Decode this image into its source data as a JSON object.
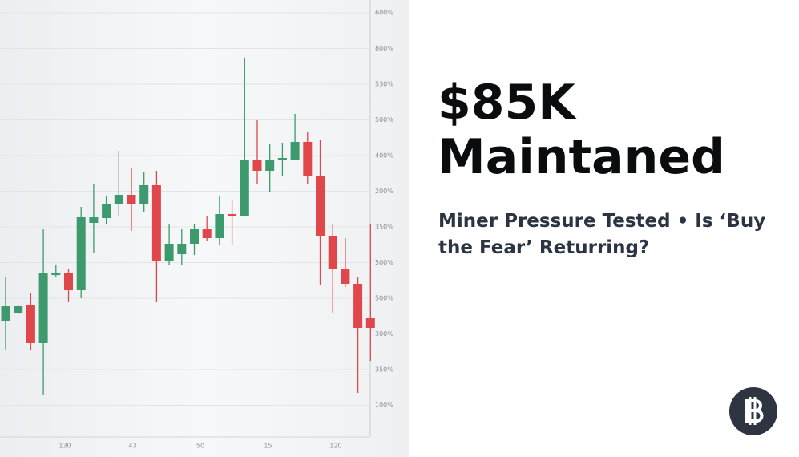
{
  "chart_data": {
    "type": "candlestick",
    "ylim": [
      0,
      570
    ],
    "up_color": "#3c9a6c",
    "down_color": "#e0474b",
    "y_labels": [
      "600%",
      "800%",
      "530%",
      "500%",
      "400%",
      "200%",
      "350%",
      "500%",
      "500%",
      "300%",
      "350%",
      "100%"
    ],
    "x_labels": [
      "130",
      "43",
      "50",
      "15",
      "120"
    ],
    "open": [
      170,
      180,
      189,
      142,
      227,
      230,
      208,
      292,
      298,
      315,
      327,
      315,
      339,
      244,
      253,
      266,
      284,
      273,
      303,
      300,
      371,
      357,
      371,
      371,
      393,
      350,
      276,
      235,
      216,
      173
    ],
    "high": [
      225,
      190,
      205,
      285,
      240,
      235,
      312,
      340,
      325,
      382,
      360,
      355,
      357,
      290,
      285,
      290,
      300,
      325,
      320,
      498,
      420,
      390,
      392,
      428,
      405,
      395,
      290,
      273,
      225,
      290
    ],
    "low": [
      133,
      178,
      133,
      77,
      225,
      193,
      198,
      255,
      290,
      300,
      282,
      305,
      193,
      240,
      240,
      252,
      270,
      265,
      265,
      300,
      340,
      330,
      350,
      370,
      340,
      215,
      180,
      212,
      80,
      120
    ],
    "close": [
      188,
      188,
      142,
      230,
      230,
      208,
      299,
      299,
      315,
      327,
      315,
      339,
      244,
      266,
      266,
      284,
      273,
      303,
      300,
      371,
      357,
      371,
      373,
      393,
      351,
      276,
      235,
      216,
      161,
      161
    ]
  },
  "headline": {
    "title_lines": [
      "$85K",
      "Maintaned"
    ],
    "subtitle_lines": [
      "Miner Pressure Tested • Is ‘Buy",
      "the Fear’ Returring?"
    ]
  }
}
